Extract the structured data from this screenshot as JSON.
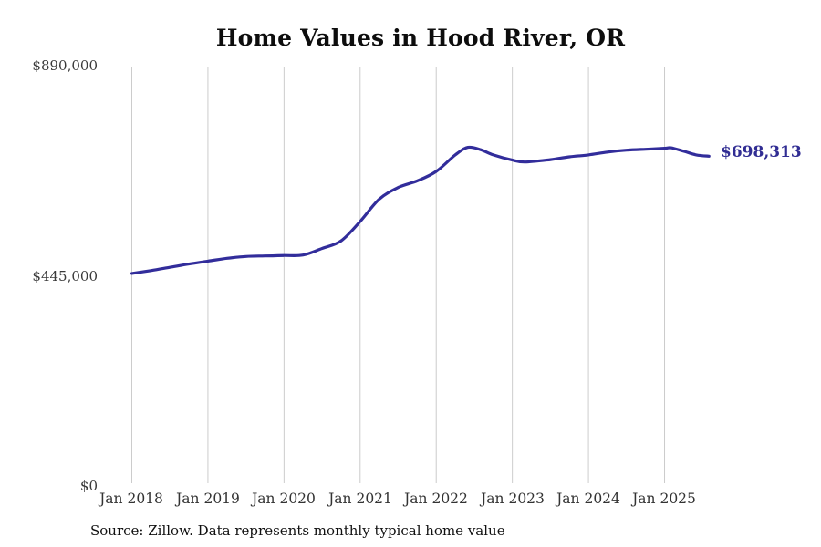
{
  "page": {
    "title": "Home Values in Hood River, OR",
    "end_label": "$698,313",
    "source_note": "Source: Zillow. Data represents monthly typical home value"
  },
  "colors": {
    "line": "#322d9b",
    "end_label": "#312d93",
    "grid": "#cccccc",
    "title": "#0d0d0d",
    "y_tick": "#3a3a3a",
    "x_tick": "#333333",
    "source": "#111111",
    "background": "#ffffff"
  },
  "chart_data": {
    "type": "line",
    "title": "Home Values in Hood River, OR",
    "xlabel": "",
    "ylabel": "",
    "ylim": [
      0,
      890000
    ],
    "grid": "vertical-only",
    "legend": "none",
    "y_ticks": [
      {
        "value": 0,
        "label": "$0"
      },
      {
        "value": 445000,
        "label": "$445,000"
      },
      {
        "value": 890000,
        "label": "$890,000"
      }
    ],
    "x_ticks": [
      "Jan 2018",
      "Jan 2019",
      "Jan 2020",
      "Jan 2021",
      "Jan 2022",
      "Jan 2023",
      "Jan 2024",
      "Jan 2025"
    ],
    "series": [
      {
        "name": "Monthly typical home value",
        "unit": "USD",
        "latest_value": 698313,
        "latest_label": "$698,313",
        "points": [
          {
            "date": "2018-01",
            "value": 450000
          },
          {
            "date": "2018-04",
            "value": 456000
          },
          {
            "date": "2018-07",
            "value": 463000
          },
          {
            "date": "2018-10",
            "value": 470000
          },
          {
            "date": "2019-01",
            "value": 476000
          },
          {
            "date": "2019-04",
            "value": 482000
          },
          {
            "date": "2019-07",
            "value": 486000
          },
          {
            "date": "2019-10",
            "value": 487000
          },
          {
            "date": "2020-01",
            "value": 488000
          },
          {
            "date": "2020-04",
            "value": 489000
          },
          {
            "date": "2020-07",
            "value": 503000
          },
          {
            "date": "2020-10",
            "value": 519000
          },
          {
            "date": "2021-01",
            "value": 560000
          },
          {
            "date": "2021-04",
            "value": 607000
          },
          {
            "date": "2021-07",
            "value": 632000
          },
          {
            "date": "2021-10",
            "value": 646000
          },
          {
            "date": "2022-01",
            "value": 666000
          },
          {
            "date": "2022-04",
            "value": 701000
          },
          {
            "date": "2022-06",
            "value": 717000
          },
          {
            "date": "2022-08",
            "value": 712000
          },
          {
            "date": "2022-10",
            "value": 701000
          },
          {
            "date": "2023-01",
            "value": 690000
          },
          {
            "date": "2023-03",
            "value": 686000
          },
          {
            "date": "2023-07",
            "value": 691000
          },
          {
            "date": "2023-10",
            "value": 697000
          },
          {
            "date": "2024-01",
            "value": 701000
          },
          {
            "date": "2024-04",
            "value": 707000
          },
          {
            "date": "2024-07",
            "value": 711000
          },
          {
            "date": "2024-10",
            "value": 713000
          },
          {
            "date": "2025-01",
            "value": 715000
          },
          {
            "date": "2025-02",
            "value": 716000
          },
          {
            "date": "2025-04",
            "value": 709000
          },
          {
            "date": "2025-06",
            "value": 701000
          },
          {
            "date": "2025-08",
            "value": 698313
          }
        ]
      }
    ],
    "source": "Source: Zillow. Data represents monthly typical home value"
  }
}
